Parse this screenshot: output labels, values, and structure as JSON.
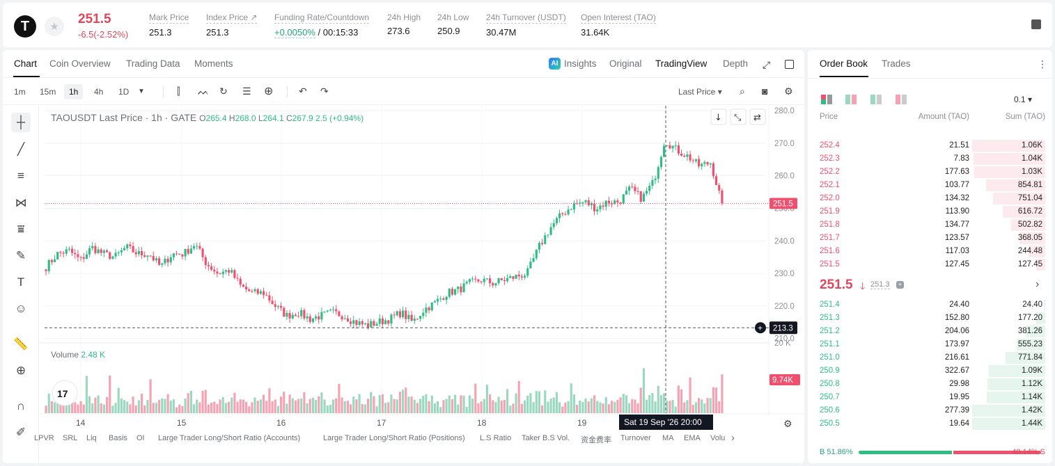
{
  "ticker": {
    "logo_letter": "T",
    "last_price": "251.5",
    "change": "-6.5(-2.52%)",
    "stats": [
      {
        "label": "Mark Price",
        "value": "251.3",
        "dashed": true
      },
      {
        "label": "Index Price ↗",
        "value": "251.3",
        "dashed": true
      },
      {
        "label": "Funding Rate/Countdown",
        "value_green": "+0.0050%",
        "value": " / 00:15:33",
        "dashed": true
      },
      {
        "label": "24h High",
        "value": "273.6"
      },
      {
        "label": "24h Low",
        "value": "250.9"
      },
      {
        "label": "24h Turnover (USDT)",
        "value": "30.47M",
        "dashed": true
      },
      {
        "label": "Open Interest (TAO)",
        "value": "31.64K",
        "dashed": true
      }
    ]
  },
  "chart_tabs": [
    "Chart",
    "Coin Overview",
    "Trading Data",
    "Moments"
  ],
  "chart_views": [
    "Insights",
    "Original",
    "TradingView",
    "Depth"
  ],
  "ai_badge": "AI",
  "intervals": [
    "1m",
    "15m",
    "1h",
    "4h",
    "1D"
  ],
  "price_type": "Last Price",
  "legend": {
    "symbol": "TAOUSDT Last Price · 1h · GATE",
    "open_label": "O",
    "open": "265.4",
    "high_label": "H",
    "high": "268.0",
    "low_label": "L",
    "low": "264.1",
    "close_label": "C",
    "close": "267.9",
    "change": "2.5 (+0.94%)"
  },
  "volume_legend": {
    "label": "Volume",
    "value": "2.48 K"
  },
  "tv_logo": "17",
  "chart_data": {
    "type": "candlestick",
    "y_ticks": [
      "280.0",
      "270.0",
      "260.0",
      "250.0",
      "240.0",
      "230.0",
      "220.0",
      "210.0"
    ],
    "y_range": [
      209.3,
      281.5
    ],
    "x_ticks": [
      "14",
      "15",
      "16",
      "17",
      "18",
      "19"
    ],
    "last_price_label": "251.5",
    "last_price_value": 251.5,
    "crosshair_price": "213.3",
    "crosshair_value": 213.3,
    "crosshair_time": "Sat 19 Sep '26   20:00",
    "volume_axis_label": "20 K",
    "volume_last_label": "9.74K",
    "volume_max": 20,
    "anchor_closes": [
      232,
      236,
      237,
      234,
      238,
      236,
      235,
      238,
      236,
      236,
      232,
      236,
      236,
      239,
      233,
      230,
      231,
      226,
      224,
      224,
      220,
      217,
      218,
      216,
      217,
      218,
      217,
      215,
      214,
      215,
      216,
      218,
      215,
      219,
      221,
      224,
      225,
      227,
      228,
      227,
      228,
      229,
      230,
      238,
      244,
      248,
      251,
      252,
      250,
      252,
      252,
      256,
      253,
      258,
      271,
      268,
      266,
      263,
      264,
      251.5
    ]
  },
  "bottom_indicators": [
    "LPVR",
    "SRL",
    "Liq",
    "Basis",
    "OI",
    "Large Trader Long/Short Ratio (Accounts)",
    "Large Trader Long/Short Ratio (Positions)",
    "L.S Ratio",
    "Taker B.S Vol.",
    "资金费率",
    "Turnover",
    "MA",
    "EMA",
    "Volu"
  ],
  "order_book": {
    "tabs": [
      "Order Book",
      "Trades"
    ],
    "precision": "0.1 ▾",
    "headers": [
      "Price",
      "Amount (TAO)",
      "Sum (TAO)"
    ],
    "asks": [
      {
        "price": "252.4",
        "amount": "21.51",
        "sum": "1.06K",
        "depth": 1.0
      },
      {
        "price": "252.3",
        "amount": "7.83",
        "sum": "1.04K",
        "depth": 0.98
      },
      {
        "price": "252.2",
        "amount": "177.63",
        "sum": "1.03K",
        "depth": 0.97
      },
      {
        "price": "252.1",
        "amount": "103.77",
        "sum": "854.81",
        "depth": 0.81
      },
      {
        "price": "252.0",
        "amount": "134.32",
        "sum": "751.04",
        "depth": 0.71
      },
      {
        "price": "251.9",
        "amount": "113.90",
        "sum": "616.72",
        "depth": 0.58
      },
      {
        "price": "251.8",
        "amount": "134.77",
        "sum": "502.82",
        "depth": 0.47
      },
      {
        "price": "251.7",
        "amount": "123.57",
        "sum": "368.05",
        "depth": 0.35
      },
      {
        "price": "251.6",
        "amount": "117.03",
        "sum": "244.48",
        "depth": 0.23
      },
      {
        "price": "251.5",
        "amount": "127.45",
        "sum": "127.45",
        "depth": 0.12
      }
    ],
    "mid_price": "251.5",
    "mid_arrow": "🡓",
    "mid_mark": "251.3",
    "bids": [
      {
        "price": "251.4",
        "amount": "24.40",
        "sum": "24.40",
        "depth": 0.02
      },
      {
        "price": "251.3",
        "amount": "152.80",
        "sum": "177.20",
        "depth": 0.12
      },
      {
        "price": "251.2",
        "amount": "204.06",
        "sum": "381.26",
        "depth": 0.27
      },
      {
        "price": "251.1",
        "amount": "173.97",
        "sum": "555.23",
        "depth": 0.39
      },
      {
        "price": "251.0",
        "amount": "216.61",
        "sum": "771.84",
        "depth": 0.54
      },
      {
        "price": "250.9",
        "amount": "322.67",
        "sum": "1.09K",
        "depth": 0.77
      },
      {
        "price": "250.8",
        "amount": "29.98",
        "sum": "1.12K",
        "depth": 0.79
      },
      {
        "price": "250.7",
        "amount": "19.95",
        "sum": "1.14K",
        "depth": 0.8
      },
      {
        "price": "250.6",
        "amount": "277.39",
        "sum": "1.42K",
        "depth": 1.0
      },
      {
        "price": "250.5",
        "amount": "19.64",
        "sum": "1.44K",
        "depth": 1.0
      }
    ],
    "buy_ratio_label": "B 51.86%",
    "sell_ratio_label": "48.14% S",
    "buy_ratio": 0.5186
  },
  "colors": {
    "up": "#2ebd85",
    "down": "#f0506e",
    "up_vol": "#9ad9c0",
    "down_vol": "#f5a3b2"
  }
}
